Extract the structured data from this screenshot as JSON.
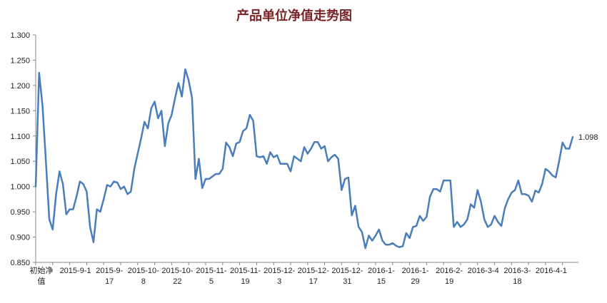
{
  "chart_data": {
    "type": "line",
    "title": "产品单位净值走势图",
    "xlabel": "",
    "ylabel": "",
    "ylim": [
      0.85,
      1.3
    ],
    "yticks": [
      "0.850",
      "0.900",
      "0.950",
      "1.000",
      "1.050",
      "1.100",
      "1.150",
      "1.200",
      "1.250",
      "1.300"
    ],
    "xtick_labels": [
      [
        "初始净",
        "值"
      ],
      [
        "2015-9-1",
        ""
      ],
      [
        "2015-9-",
        "17"
      ],
      [
        "2015-10-",
        "8"
      ],
      [
        "2015-10-",
        "22"
      ],
      [
        "2015-11-",
        "5"
      ],
      [
        "2015-11-",
        "19"
      ],
      [
        "2015-12-",
        "3"
      ],
      [
        "2015-12-",
        "17"
      ],
      [
        "2015-12-",
        "31"
      ],
      [
        "2016-1-",
        "15"
      ],
      [
        "2016-1-",
        "29"
      ],
      [
        "2016-2-",
        "19"
      ],
      [
        "2016-3-4",
        ""
      ],
      [
        "2016-3-",
        "18"
      ],
      [
        "2016-4-1",
        ""
      ]
    ],
    "xtick_index": [
      0,
      10,
      20,
      30,
      40,
      50,
      60,
      70,
      80,
      90,
      100,
      110,
      120,
      130,
      140,
      150
    ],
    "grid": false,
    "legend": "none",
    "end_label": "1.098",
    "series": [
      {
        "color": "#4a7ebb",
        "values": [
          1.0,
          1.225,
          1.16,
          1.05,
          0.935,
          0.915,
          0.985,
          1.03,
          1.005,
          0.945,
          0.955,
          0.955,
          0.98,
          1.01,
          1.005,
          0.99,
          0.92,
          0.89,
          0.955,
          0.95,
          0.975,
          1.003,
          1.0,
          1.01,
          1.008,
          0.995,
          1.0,
          0.985,
          0.99,
          1.035,
          1.065,
          1.095,
          1.128,
          1.115,
          1.155,
          1.168,
          1.135,
          1.15,
          1.08,
          1.125,
          1.142,
          1.175,
          1.205,
          1.178,
          1.232,
          1.21,
          1.175,
          1.015,
          1.055,
          0.997,
          1.015,
          1.015,
          1.02,
          1.025,
          1.025,
          1.035,
          1.087,
          1.078,
          1.06,
          1.085,
          1.088,
          1.11,
          1.115,
          1.142,
          1.13,
          1.06,
          1.058,
          1.06,
          1.045,
          1.068,
          1.058,
          1.062,
          1.045,
          1.045,
          1.045,
          1.03,
          1.06,
          1.055,
          1.05,
          1.078,
          1.065,
          1.075,
          1.088,
          1.088,
          1.075,
          1.08,
          1.05,
          1.058,
          1.063,
          1.055,
          0.993,
          1.015,
          1.018,
          0.943,
          0.962,
          0.92,
          0.91,
          0.878,
          0.903,
          0.893,
          0.903,
          0.915,
          0.893,
          0.885,
          0.885,
          0.888,
          0.883,
          0.88,
          0.882,
          0.908,
          0.898,
          0.92,
          0.922,
          0.942,
          0.932,
          0.94,
          0.98,
          0.995,
          0.995,
          0.99,
          1.012,
          1.012,
          1.012,
          0.92,
          0.93,
          0.92,
          0.925,
          0.935,
          0.965,
          0.958,
          0.993,
          0.97,
          0.935,
          0.92,
          0.925,
          0.942,
          0.93,
          0.922,
          0.957,
          0.975,
          0.988,
          0.993,
          1.012,
          0.985,
          0.985,
          0.982,
          0.97,
          0.992,
          0.988,
          1.005,
          1.035,
          1.03,
          1.022,
          1.018,
          1.05,
          1.087,
          1.075,
          1.075,
          1.098
        ]
      }
    ]
  }
}
